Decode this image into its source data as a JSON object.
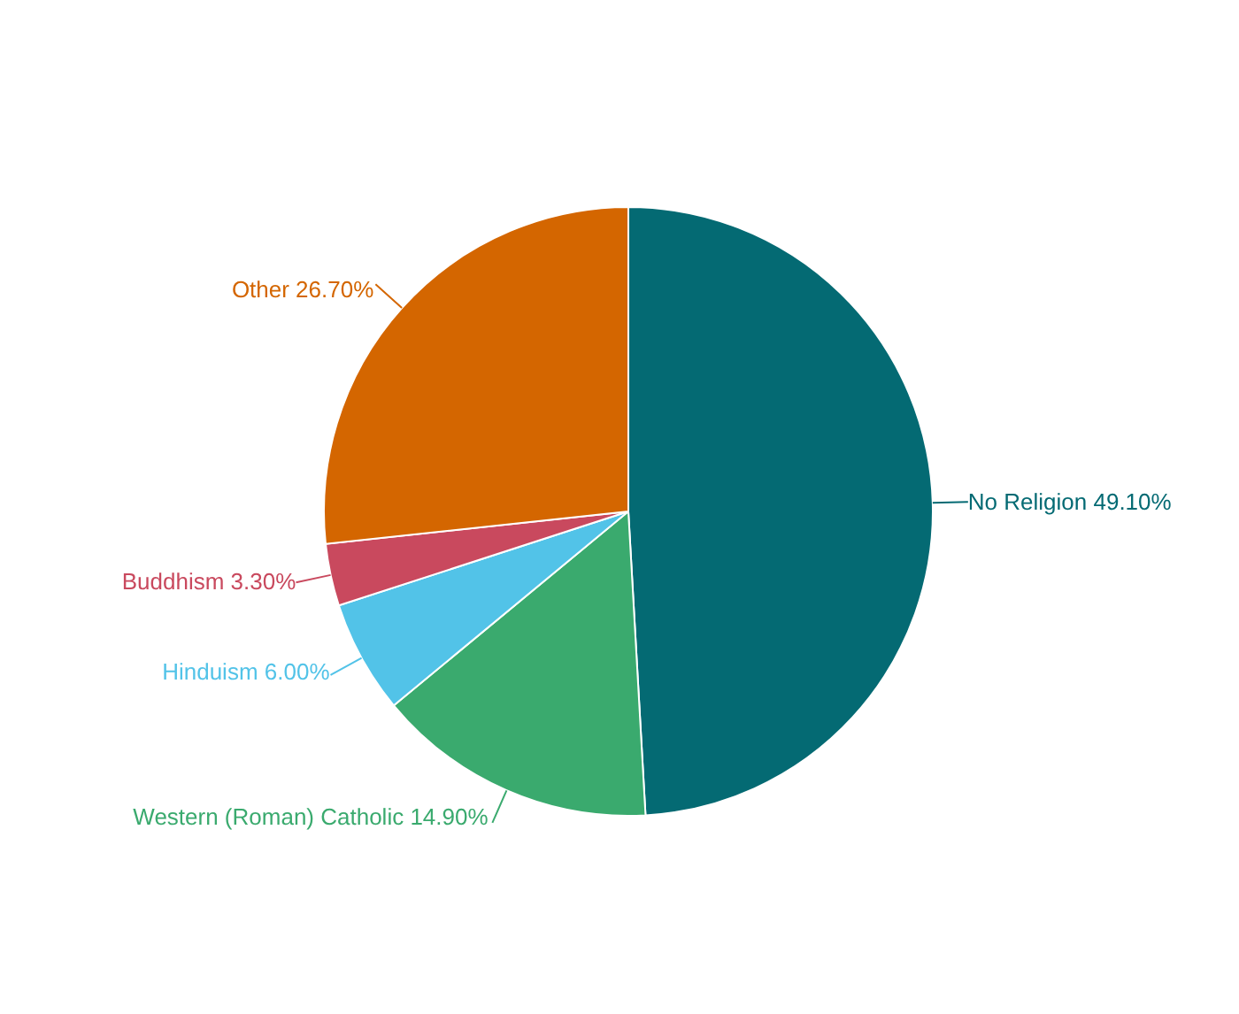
{
  "chart_data": {
    "type": "pie",
    "categories": [
      "No Religion",
      "Western (Roman) Catholic",
      "Hinduism",
      "Buddhism",
      "Other"
    ],
    "values": [
      49.1,
      14.9,
      6.0,
      3.3,
      26.7
    ],
    "value_labels": [
      "49.10%",
      "14.90%",
      "6.00%",
      "3.30%",
      "26.70%"
    ],
    "colors": [
      "#046a73",
      "#3aaa6e",
      "#52c3e8",
      "#c9495e",
      "#d46600"
    ],
    "legend": false
  }
}
